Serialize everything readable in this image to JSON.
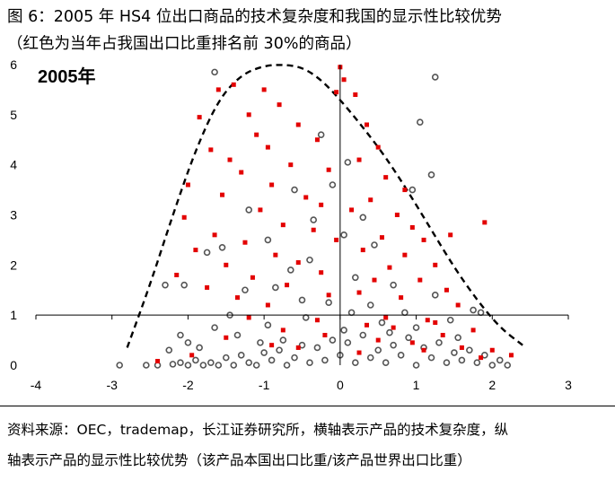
{
  "figure": {
    "title_line1": "图 6：2005 年 HS4 位出口商品的技术复杂度和我国的显示性比较优势",
    "title_line2": "（红色为当年占我国出口比重排名前 30%的商品）",
    "source_line1": "资料来源：OEC，trademap，长江证券研究所，横轴表示产品的技术复杂度，纵",
    "source_line2": "轴表示产品的显示性比较优势（该产品本国出口比重/该产品世界出口比重）"
  },
  "colors": {
    "top30_marker": "#e30000",
    "other_marker_fill": "#ffffff",
    "other_marker_edge": "#555555",
    "envelope": "#000000"
  },
  "chart_data": {
    "type": "scatter",
    "panel_label": "2005年",
    "xlim": [
      -4,
      3
    ],
    "ylim": [
      0,
      6
    ],
    "x_ticks": [
      "-4",
      "-3",
      "-2",
      "-1",
      "0",
      "1",
      "2",
      "3"
    ],
    "y_ticks": [
      "0",
      "1",
      "2",
      "3",
      "4",
      "5",
      "6"
    ],
    "grid": false,
    "axes_cross_at": [
      0,
      1
    ],
    "envelope_curve": {
      "style": "dashed",
      "x": [
        -2.8,
        -2.5,
        -2.2,
        -1.9,
        -1.6,
        -1.3,
        -1.0,
        -0.75,
        -0.5,
        -0.25,
        0.0,
        0.3,
        0.6,
        0.9,
        1.2,
        1.5,
        1.8,
        2.1,
        2.4
      ],
      "y": [
        0.35,
        1.6,
        3.0,
        4.3,
        5.3,
        5.8,
        5.98,
        6.0,
        5.95,
        5.7,
        5.3,
        4.75,
        4.15,
        3.45,
        2.7,
        1.95,
        1.3,
        0.75,
        0.4
      ]
    },
    "series": [
      {
        "name": "",
        "marker": "filled-red",
        "points": [
          [
            -1.6,
            5.5
          ],
          [
            -1.4,
            5.6
          ],
          [
            -1.0,
            5.5
          ],
          [
            -0.8,
            5.2
          ],
          [
            -1.2,
            5.0
          ],
          [
            -1.85,
            4.95
          ],
          [
            -0.55,
            4.8
          ],
          [
            -1.1,
            4.6
          ],
          [
            -1.7,
            4.3
          ],
          [
            -0.95,
            4.35
          ],
          [
            -0.3,
            4.5
          ],
          [
            -2.0,
            3.6
          ],
          [
            -1.45,
            4.1
          ],
          [
            -0.65,
            4.0
          ],
          [
            -1.3,
            3.85
          ],
          [
            -0.15,
            3.9
          ],
          [
            -0.9,
            3.6
          ],
          [
            -1.55,
            3.4
          ],
          [
            -0.45,
            3.35
          ],
          [
            -1.05,
            3.1
          ],
          [
            -0.25,
            3.2
          ],
          [
            -2.05,
            2.95
          ],
          [
            -0.75,
            2.8
          ],
          [
            -1.65,
            2.6
          ],
          [
            -0.35,
            2.7
          ],
          [
            -1.25,
            2.45
          ],
          [
            -0.05,
            2.5
          ],
          [
            -1.9,
            2.3
          ],
          [
            -0.85,
            2.2
          ],
          [
            -1.5,
            2.0
          ],
          [
            -0.55,
            2.05
          ],
          [
            -2.15,
            1.8
          ],
          [
            -1.15,
            1.75
          ],
          [
            -0.25,
            1.85
          ],
          [
            -1.75,
            1.55
          ],
          [
            -0.7,
            1.6
          ],
          [
            -1.35,
            1.35
          ],
          [
            -0.15,
            1.4
          ],
          [
            -0.95,
            1.2
          ],
          [
            0.0,
            5.95
          ],
          [
            0.05,
            5.7
          ],
          [
            -0.05,
            5.45
          ],
          [
            0.2,
            5.4
          ],
          [
            0.35,
            4.8
          ],
          [
            0.5,
            4.35
          ],
          [
            0.25,
            4.1
          ],
          [
            0.6,
            3.75
          ],
          [
            0.85,
            3.5
          ],
          [
            0.4,
            3.3
          ],
          [
            0.15,
            3.1
          ],
          [
            0.75,
            3.0
          ],
          [
            0.95,
            2.75
          ],
          [
            1.1,
            2.5
          ],
          [
            0.55,
            2.55
          ],
          [
            0.3,
            2.3
          ],
          [
            0.85,
            2.2
          ],
          [
            1.25,
            2.0
          ],
          [
            0.65,
            1.95
          ],
          [
            0.45,
            1.7
          ],
          [
            1.05,
            1.7
          ],
          [
            1.4,
            1.5
          ],
          [
            0.25,
            1.45
          ],
          [
            0.8,
            1.35
          ],
          [
            1.55,
            1.2
          ],
          [
            1.9,
            2.85
          ],
          [
            1.45,
            2.6
          ],
          [
            1.15,
            0.9
          ],
          [
            0.6,
            0.95
          ],
          [
            -0.3,
            0.9
          ],
          [
            -1.2,
            0.95
          ],
          [
            -2.4,
            0.08
          ],
          [
            -1.95,
            0.2
          ],
          [
            -0.55,
            0.35
          ],
          [
            0.5,
            0.5
          ],
          [
            0.95,
            0.45
          ],
          [
            1.35,
            0.6
          ],
          [
            1.75,
            0.7
          ],
          [
            2.0,
            0.3
          ],
          [
            2.25,
            0.2
          ],
          [
            1.6,
            0.35
          ],
          [
            0.25,
            0.25
          ],
          [
            -0.9,
            0.4
          ],
          [
            -1.5,
            0.55
          ],
          [
            0.7,
            0.75
          ],
          [
            1.1,
            0.3
          ],
          [
            1.85,
            0.15
          ],
          [
            -0.2,
            0.6
          ],
          [
            0.35,
            0.8
          ],
          [
            1.25,
            0.85
          ],
          [
            -0.75,
            0.7
          ]
        ]
      },
      {
        "name": "",
        "marker": "hollow-grey",
        "points": [
          [
            -2.9,
            0.0
          ],
          [
            -2.55,
            0.0
          ],
          [
            -2.4,
            0.0
          ],
          [
            -2.2,
            0.02
          ],
          [
            -2.1,
            0.05
          ],
          [
            -2.0,
            0.0
          ],
          [
            -1.9,
            0.1
          ],
          [
            -1.8,
            0.0
          ],
          [
            -1.7,
            0.05
          ],
          [
            -1.6,
            0.0
          ],
          [
            -1.5,
            0.15
          ],
          [
            -1.4,
            0.0
          ],
          [
            -1.3,
            0.2
          ],
          [
            -1.2,
            0.05
          ],
          [
            -1.1,
            0.0
          ],
          [
            -1.0,
            0.25
          ],
          [
            -0.9,
            0.1
          ],
          [
            -0.8,
            0.3
          ],
          [
            -0.7,
            0.0
          ],
          [
            -0.6,
            0.15
          ],
          [
            -0.5,
            0.4
          ],
          [
            -0.4,
            0.05
          ],
          [
            -0.3,
            0.35
          ],
          [
            -0.2,
            0.1
          ],
          [
            -0.1,
            0.5
          ],
          [
            0.0,
            0.2
          ],
          [
            0.1,
            0.45
          ],
          [
            0.2,
            0.05
          ],
          [
            0.3,
            0.6
          ],
          [
            0.4,
            0.15
          ],
          [
            0.5,
            0.3
          ],
          [
            0.6,
            0.05
          ],
          [
            0.7,
            0.4
          ],
          [
            0.8,
            0.2
          ],
          [
            0.9,
            0.55
          ],
          [
            1.0,
            0.0
          ],
          [
            1.1,
            0.35
          ],
          [
            1.2,
            0.15
          ],
          [
            1.3,
            0.45
          ],
          [
            1.4,
            0.05
          ],
          [
            1.5,
            0.25
          ],
          [
            1.6,
            0.1
          ],
          [
            1.7,
            0.3
          ],
          [
            1.8,
            0.05
          ],
          [
            1.9,
            0.2
          ],
          [
            2.0,
            0.0
          ],
          [
            2.1,
            0.1
          ],
          [
            2.2,
            0.0
          ],
          [
            -1.65,
            5.85
          ],
          [
            1.25,
            5.75
          ],
          [
            1.05,
            4.85
          ],
          [
            1.2,
            3.8
          ],
          [
            0.95,
            3.5
          ],
          [
            -0.6,
            3.5
          ],
          [
            -1.2,
            3.1
          ],
          [
            -0.95,
            2.5
          ],
          [
            -1.55,
            2.35
          ],
          [
            -0.4,
            2.1
          ],
          [
            0.05,
            2.6
          ],
          [
            0.45,
            2.4
          ],
          [
            -1.75,
            2.25
          ],
          [
            -0.65,
            1.9
          ],
          [
            -2.05,
            1.6
          ],
          [
            -1.25,
            1.5
          ],
          [
            -0.5,
            1.3
          ],
          [
            -0.85,
            1.55
          ],
          [
            0.2,
            1.75
          ],
          [
            0.7,
            1.6
          ],
          [
            1.25,
            1.4
          ],
          [
            1.85,
            1.05
          ],
          [
            1.75,
            1.1
          ],
          [
            -0.1,
            3.6
          ],
          [
            -0.35,
            2.9
          ],
          [
            0.3,
            2.95
          ],
          [
            -1.45,
            1.0
          ],
          [
            -2.1,
            0.6
          ],
          [
            -1.65,
            0.75
          ],
          [
            -0.95,
            0.8
          ],
          [
            -0.45,
            0.95
          ],
          [
            0.15,
            1.05
          ],
          [
            0.55,
            0.85
          ],
          [
            1.0,
            0.75
          ],
          [
            1.45,
            0.9
          ],
          [
            -1.85,
            0.35
          ],
          [
            -2.0,
            0.45
          ],
          [
            -1.35,
            0.6
          ],
          [
            -0.75,
            0.5
          ],
          [
            0.05,
            0.7
          ],
          [
            0.65,
            0.65
          ],
          [
            1.55,
            0.55
          ],
          [
            -2.25,
            0.3
          ],
          [
            -1.05,
            0.45
          ],
          [
            0.4,
            1.2
          ],
          [
            -0.15,
            1.25
          ],
          [
            0.85,
            1.05
          ],
          [
            -2.3,
            1.6
          ],
          [
            -0.25,
            4.6
          ],
          [
            0.1,
            4.05
          ]
        ]
      }
    ]
  }
}
